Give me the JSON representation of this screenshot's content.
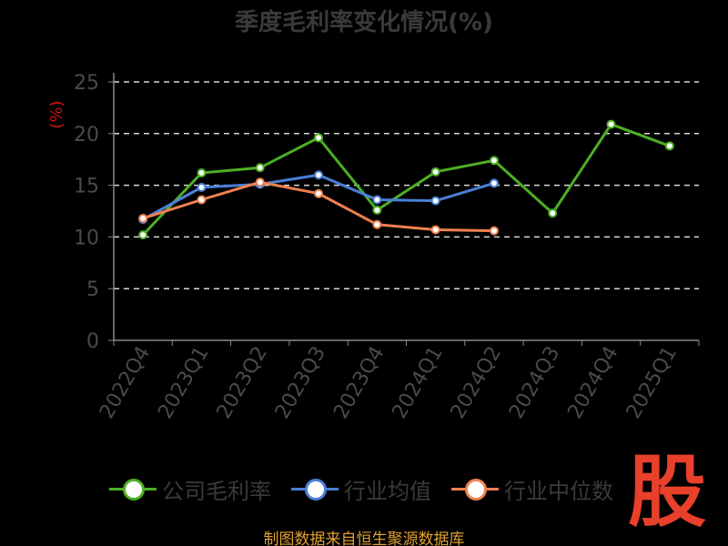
{
  "chart_data": {
    "type": "line",
    "title": "季度毛利率变化情况(%)",
    "ylabel": "(%)",
    "xlabel": "",
    "ylim": [
      0,
      25
    ],
    "yticks": [
      0,
      5,
      10,
      15,
      20,
      25
    ],
    "grid": true,
    "legend_position": "bottom",
    "categories": [
      "2022Q4",
      "2023Q1",
      "2023Q2",
      "2023Q3",
      "2023Q4",
      "2024Q1",
      "2024Q2",
      "2024Q3",
      "2024Q4",
      "2025Q1"
    ],
    "series": [
      {
        "name": "公司毛利率",
        "color": "#4caf23",
        "values": [
          10.2,
          16.2,
          16.7,
          19.6,
          12.6,
          16.3,
          17.4,
          12.3,
          20.9,
          18.8
        ]
      },
      {
        "name": "行业均值",
        "color": "#4a7fd8",
        "values": [
          11.7,
          14.8,
          15.1,
          16.0,
          13.6,
          13.5,
          15.2,
          null,
          null,
          null
        ]
      },
      {
        "name": "行业中位数",
        "color": "#f08050",
        "values": [
          11.8,
          13.6,
          15.3,
          14.2,
          11.2,
          10.7,
          10.6,
          null,
          null,
          null
        ]
      }
    ]
  },
  "watermark": "股",
  "source_note": "制图数据来自恒生聚源数据库"
}
